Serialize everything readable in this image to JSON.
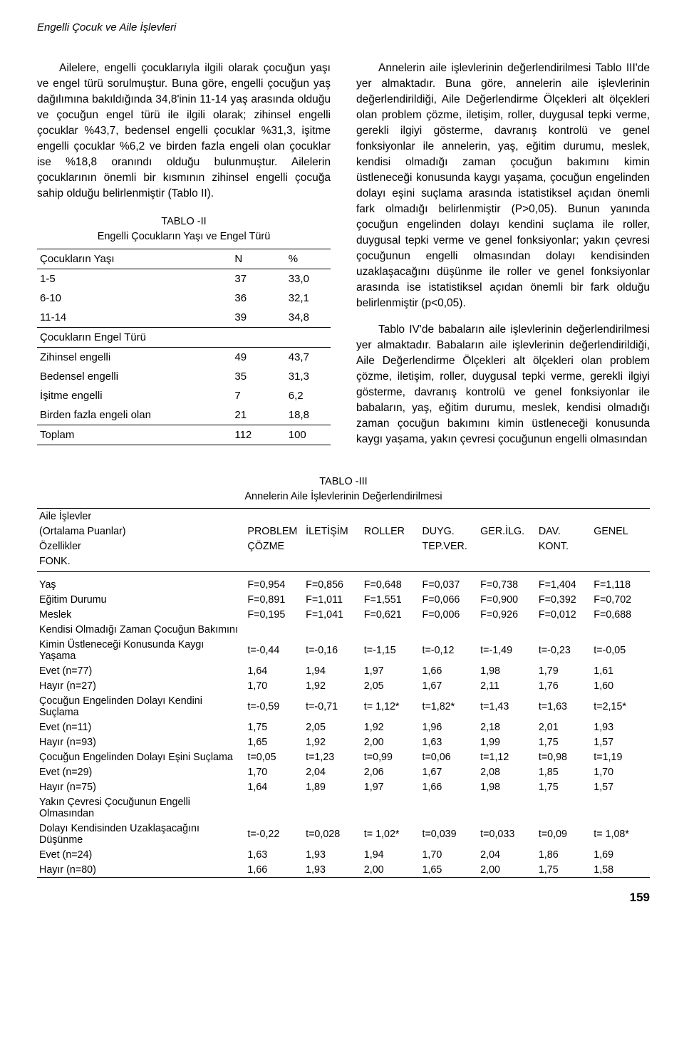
{
  "running_head": "Engelli Çocuk ve Aile İşlevleri",
  "page_number": "159",
  "left_paragraphs": [
    "Ailelere, engelli çocuklarıyla ilgili olarak çocuğun yaşı ve engel türü sorulmuştur. Buna göre, engelli çocuğun yaş dağılımına bakıldığında 34,8'inin 11-14 yaş arasında olduğu ve çocuğun engel türü ile ilgili olarak; zihinsel engelli çocuklar %43,7, bedensel engelli çocuklar %31,3, işitme engelli çocuklar %6,2 ve birden fazla engeli olan çocuklar ise %18,8 oranındı olduğu bulunmuştur. Ailelerin çocuklarının önemli bir kısmının zihinsel engelli çocuğa sahip olduğu belirlenmiştir (Tablo II)."
  ],
  "right_paragraphs": [
    "Annelerin aile işlevlerinin değerlendirilmesi Tablo III'de yer almaktadır. Buna göre, annelerin aile işlevlerinin değerlendirildiği, Aile Değerlendirme Ölçekleri alt ölçekleri olan problem çözme, iletişim, roller, duygusal tepki verme, gerekli ilgiyi gösterme, davranış kontrolü ve genel fonksiyonlar ile annelerin, yaş, eğitim durumu, meslek, kendisi olmadığı zaman çocuğun bakımını kimin üstleneceği konusunda kaygı yaşama, çocuğun engelinden dolayı eşini suçlama arasında istatistiksel açıdan önemli fark olmadığı belirlenmiştir (P>0,05). Bunun yanında çocuğun engelinden dolayı kendini suçlama ile roller, duygusal tepki verme ve genel fonksiyonlar; yakın çevresi çocuğunun engelli olmasından dolayı kendisinden uzaklaşacağını düşünme ile roller ve genel fonksiyonlar arasında ise istatistiksel açıdan önemli bir fark olduğu belirlenmiştir (p<0,05).",
    "Tablo IV'de babaların aile işlevlerinin değerlendirilmesi yer almaktadır. Babaların aile işlevlerinin değerlendirildiği, Aile Değerlendirme Ölçekleri alt ölçekleri olan problem çözme, iletişim, roller, duygusal tepki verme, gerekli ilgiyi gösterme, davranış kontrolü ve genel fonksiyonlar ile babaların, yaş, eğitim durumu, meslek, kendisi olmadığı zaman çocuğun bakımını kimin üstleneceği konusunda kaygı yaşama, yakın çevresi çocuğunun engelli olmasından"
  ],
  "table2": {
    "title_line1": "TABLO -II",
    "title_line2": "Engelli Çocukların Yaşı ve Engel Türü",
    "header_labels": {
      "col1": "Çocukların Yaşı",
      "col2": "N",
      "col3": "%"
    },
    "age_rows": [
      {
        "label": "1-5",
        "n": "37",
        "pct": "33,0"
      },
      {
        "label": "6-10",
        "n": "36",
        "pct": "32,1"
      },
      {
        "label": "11-14",
        "n": "39",
        "pct": "34,8"
      }
    ],
    "type_header": "Çocukların Engel Türü",
    "type_rows": [
      {
        "label": "Zihinsel engelli",
        "n": "49",
        "pct": "43,7"
      },
      {
        "label": "Bedensel engelli",
        "n": "35",
        "pct": "31,3"
      },
      {
        "label": "İşitme engelli",
        "n": "7",
        "pct": "6,2"
      },
      {
        "label": "Birden fazla engeli olan",
        "n": "21",
        "pct": "18,8"
      }
    ],
    "total": {
      "label": "Toplam",
      "n": "112",
      "pct": "100"
    }
  },
  "table3": {
    "title_line1": "TABLO -III",
    "title_line2": "Annelerin Aile İşlevlerinin Değerlendirilmesi",
    "header_group": {
      "row1_left1": "Aile İşlevler",
      "row2_left1": "(Ortalama Puanlar)",
      "row3_left1": "Özellikler",
      "row4_left1": "FONK.",
      "cols_top": [
        "PROBLEM",
        "İLETİŞİM",
        "ROLLER",
        "DUYG.",
        "GER.İLG.",
        "DAV.",
        "GENEL"
      ],
      "cols_mid": [
        "ÇÖZME",
        "",
        "",
        "TEP.VER.",
        "",
        "KONT.",
        ""
      ]
    },
    "rows": [
      {
        "label": "Yaş",
        "v": [
          "F=0,954",
          "F=0,856",
          "F=0,648",
          "F=0,037",
          "F=0,738",
          "F=1,404",
          "F=1,118"
        ]
      },
      {
        "label": "Eğitim Durumu",
        "v": [
          "F=0,891",
          "F=1,011",
          "F=1,551",
          "F=0,066",
          "F=0,900",
          "F=0,392",
          "F=0,702"
        ]
      },
      {
        "label": "Meslek",
        "v": [
          "F=0,195",
          "F=1,041",
          "F=0,621",
          "F=0,006",
          "F=0,926",
          "F=0,012",
          "F=0,688"
        ]
      },
      {
        "label": "Kendisi Olmadığı Zaman Çocuğun Bakımını",
        "v": [
          "",
          "",
          "",
          "",
          "",
          "",
          ""
        ]
      },
      {
        "label": "Kimin Üstleneceği Konusunda Kaygı Yaşama",
        "v": [
          "t=-0,44",
          "t=-0,16",
          "t=-1,15",
          "t=-0,12",
          "t=-1,49",
          "t=-0,23",
          "t=-0,05"
        ]
      },
      {
        "label": "Evet (n=77)",
        "v": [
          "1,64",
          "1,94",
          "1,97",
          "1,66",
          "1,98",
          "1,79",
          "1,61"
        ]
      },
      {
        "label": "Hayır (n=27)",
        "v": [
          "1,70",
          "1,92",
          "2,05",
          "1,67",
          "2,11",
          "1,76",
          "1,60"
        ]
      },
      {
        "label": "Çocuğun Engelinden Dolayı Kendini Suçlama",
        "v": [
          "t=-0,59",
          "t=-0,71",
          "t= 1,12*",
          "t=1,82*",
          "t=1,43",
          "t=1,63",
          "t=2,15*"
        ]
      },
      {
        "label": "Evet (n=11)",
        "v": [
          "1,75",
          "2,05",
          "1,92",
          "1,96",
          "2,18",
          "2,01",
          "1,93"
        ]
      },
      {
        "label": "Hayır (n=93)",
        "v": [
          "1,65",
          "1,92",
          "2,00",
          "1,63",
          "1,99",
          "1,75",
          "1,57"
        ]
      },
      {
        "label": "Çocuğun Engelinden Dolayı Eşini Suçlama",
        "v": [
          "t=0,05",
          "t=1,23",
          "t=0,99",
          "t=0,06",
          "t=1,12",
          "t=0,98",
          "t=1,19"
        ]
      },
      {
        "label": "Evet (n=29)",
        "v": [
          "1,70",
          "2,04",
          "2,06",
          "1,67",
          "2,08",
          "1,85",
          "1,70"
        ]
      },
      {
        "label": "Hayır (n=75)",
        "v": [
          "1,64",
          "1,89",
          "1,97",
          "1,66",
          "1,98",
          "1,75",
          "1,57"
        ]
      },
      {
        "label": "Yakın Çevresi Çocuğunun Engelli Olmasından",
        "v": [
          "",
          "",
          "",
          "",
          "",
          "",
          ""
        ]
      },
      {
        "label": "Dolayı Kendisinden Uzaklaşacağını Düşünme",
        "v": [
          "t=-0,22",
          "t=0,028",
          "t= 1,02*",
          "t=0,039",
          "t=0,033",
          "t=0,09",
          "t= 1,08*"
        ]
      },
      {
        "label": "Evet (n=24)",
        "v": [
          "1,63",
          "1,93",
          "1,94",
          "1,70",
          "2,04",
          "1,86",
          "1,69"
        ]
      },
      {
        "label": "Hayır (n=80)",
        "v": [
          "1,66",
          "1,93",
          "2,00",
          "1,65",
          "2,00",
          "1,75",
          "1,58"
        ]
      }
    ]
  },
  "layout": {
    "col_widths_t3": [
      "34%",
      "9.5%",
      "9.5%",
      "9.5%",
      "9.5%",
      "9.5%",
      "9%",
      "9.5%"
    ]
  }
}
